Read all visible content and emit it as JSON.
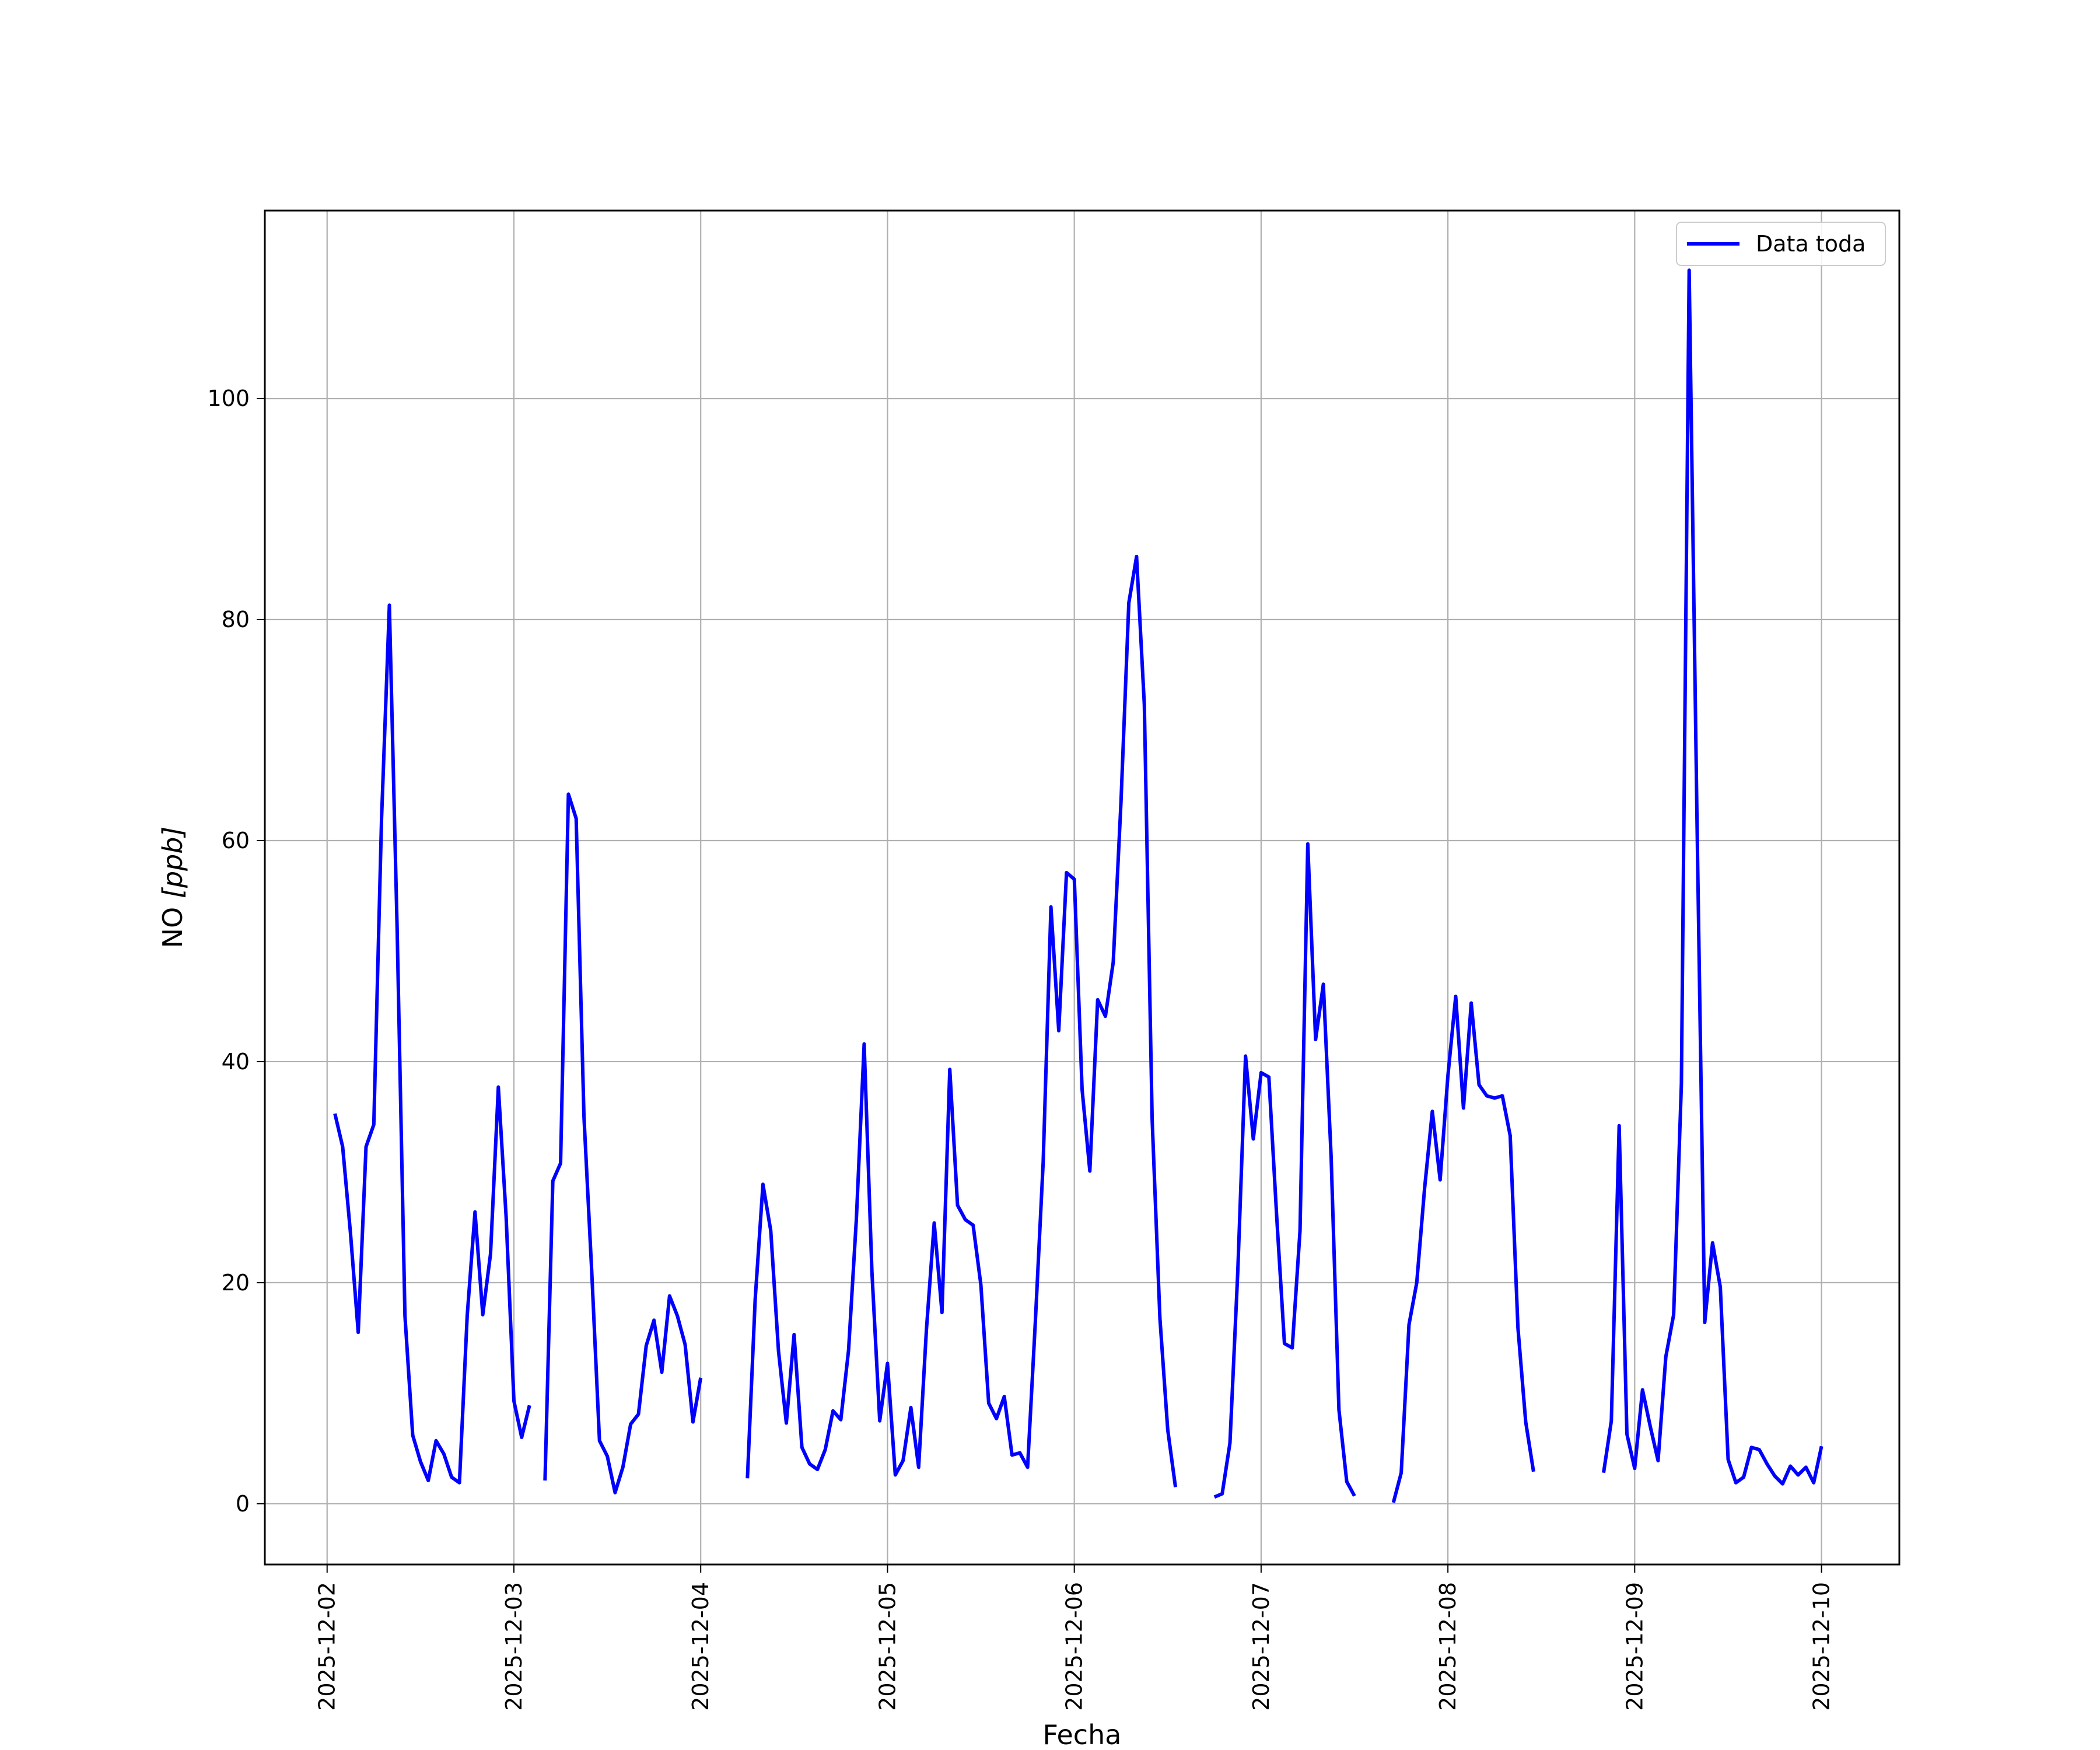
{
  "chart_data": {
    "type": "line",
    "xlabel": "Fecha",
    "ylabel_main": "NO ",
    "ylabel_unit": "[ppb]",
    "xlim": [
      "2025-12-01T16:00",
      "2025-12-10T10:00"
    ],
    "ylim": [
      -5.5,
      117
    ],
    "x_ticks": [
      "2025-12-02",
      "2025-12-03",
      "2025-12-04",
      "2025-12-05",
      "2025-12-06",
      "2025-12-07",
      "2025-12-08",
      "2025-12-09",
      "2025-12-10"
    ],
    "y_ticks": [
      0,
      20,
      40,
      60,
      80,
      100
    ],
    "grid": true,
    "legend_position": "upper-right",
    "series": [
      {
        "name": "Data toda",
        "color": "#0000ff",
        "segments": [
          [
            [
              "2025-12-02T01:00",
              35.3
            ],
            [
              "2025-12-02T02:00",
              32.3
            ],
            [
              "2025-12-02T03:00",
              24.5
            ],
            [
              "2025-12-02T04:00",
              15.5
            ],
            [
              "2025-12-02T05:00",
              32.3
            ],
            [
              "2025-12-02T06:00",
              34.3
            ],
            [
              "2025-12-02T07:00",
              62.0
            ],
            [
              "2025-12-02T08:00",
              81.3
            ],
            [
              "2025-12-02T09:00",
              52.0
            ],
            [
              "2025-12-02T10:00",
              17.0
            ],
            [
              "2025-12-02T11:00",
              6.2
            ],
            [
              "2025-12-02T12:00",
              3.8
            ],
            [
              "2025-12-02T13:00",
              2.1
            ],
            [
              "2025-12-02T14:00",
              5.7
            ],
            [
              "2025-12-02T15:00",
              4.5
            ],
            [
              "2025-12-02T16:00",
              2.4
            ],
            [
              "2025-12-02T17:00",
              1.9
            ],
            [
              "2025-12-02T18:00",
              17.0
            ],
            [
              "2025-12-02T19:00",
              26.4
            ],
            [
              "2025-12-02T20:00",
              17.1
            ],
            [
              "2025-12-02T21:00",
              22.6
            ],
            [
              "2025-12-02T22:00",
              37.7
            ],
            [
              "2025-12-02T23:00",
              26.0
            ],
            [
              "2025-12-03T00:00",
              9.3
            ],
            [
              "2025-12-03T01:00",
              6.0
            ],
            [
              "2025-12-03T02:00",
              8.9
            ]
          ],
          [
            [
              "2025-12-03T04:00",
              2.1
            ],
            [
              "2025-12-03T05:00",
              29.2
            ],
            [
              "2025-12-03T06:00",
              30.8
            ],
            [
              "2025-12-03T07:00",
              64.2
            ],
            [
              "2025-12-03T08:00",
              62.0
            ],
            [
              "2025-12-03T09:00",
              35.0
            ],
            [
              "2025-12-03T10:00",
              21.0
            ],
            [
              "2025-12-03T11:00",
              5.7
            ],
            [
              "2025-12-03T12:00",
              4.3
            ],
            [
              "2025-12-03T13:00",
              1.0
            ],
            [
              "2025-12-03T14:00",
              3.3
            ],
            [
              "2025-12-03T15:00",
              7.2
            ],
            [
              "2025-12-03T16:00",
              8.1
            ],
            [
              "2025-12-03T17:00",
              14.3
            ],
            [
              "2025-12-03T18:00",
              16.6
            ],
            [
              "2025-12-03T19:00",
              11.9
            ],
            [
              "2025-12-03T20:00",
              18.8
            ],
            [
              "2025-12-03T21:00",
              17.0
            ],
            [
              "2025-12-03T22:00",
              14.4
            ],
            [
              "2025-12-03T23:00",
              7.4
            ],
            [
              "2025-12-04T00:00",
              11.4
            ]
          ],
          [
            [
              "2025-12-04T06:00",
              2.3
            ],
            [
              "2025-12-04T07:00",
              18.5
            ],
            [
              "2025-12-04T08:00",
              28.9
            ],
            [
              "2025-12-04T09:00",
              24.7
            ],
            [
              "2025-12-04T10:00",
              13.8
            ],
            [
              "2025-12-04T11:00",
              7.3
            ],
            [
              "2025-12-04T12:00",
              15.3
            ],
            [
              "2025-12-04T13:00",
              5.1
            ],
            [
              "2025-12-04T14:00",
              3.6
            ],
            [
              "2025-12-04T15:00",
              3.1
            ],
            [
              "2025-12-04T16:00",
              4.9
            ],
            [
              "2025-12-04T17:00",
              8.4
            ],
            [
              "2025-12-04T18:00",
              7.6
            ],
            [
              "2025-12-04T19:00",
              13.9
            ],
            [
              "2025-12-04T20:00",
              25.8
            ],
            [
              "2025-12-04T21:00",
              41.6
            ],
            [
              "2025-12-04T22:00",
              21.0
            ],
            [
              "2025-12-04T23:00",
              7.5
            ],
            [
              "2025-12-05T00:00",
              12.7
            ],
            [
              "2025-12-05T01:00",
              2.6
            ],
            [
              "2025-12-05T02:00",
              3.9
            ],
            [
              "2025-12-05T03:00",
              8.7
            ],
            [
              "2025-12-05T04:00",
              3.3
            ],
            [
              "2025-12-05T05:00",
              15.7
            ],
            [
              "2025-12-05T06:00",
              25.4
            ],
            [
              "2025-12-05T07:00",
              17.3
            ],
            [
              "2025-12-05T08:00",
              39.3
            ],
            [
              "2025-12-05T09:00",
              27.0
            ],
            [
              "2025-12-05T10:00",
              25.7
            ],
            [
              "2025-12-05T11:00",
              25.2
            ],
            [
              "2025-12-05T12:00",
              19.8
            ],
            [
              "2025-12-05T13:00",
              9.1
            ],
            [
              "2025-12-05T14:00",
              7.7
            ],
            [
              "2025-12-05T15:00",
              9.7
            ],
            [
              "2025-12-05T16:00",
              4.4
            ],
            [
              "2025-12-05T17:00",
              4.6
            ],
            [
              "2025-12-05T18:00",
              3.3
            ],
            [
              "2025-12-05T19:00",
              16.5
            ],
            [
              "2025-12-05T20:00",
              30.9
            ],
            [
              "2025-12-05T21:00",
              54.0
            ],
            [
              "2025-12-05T22:00",
              42.8
            ],
            [
              "2025-12-05T23:00",
              57.1
            ],
            [
              "2025-12-06T00:00",
              56.5
            ],
            [
              "2025-12-06T01:00",
              37.5
            ],
            [
              "2025-12-06T02:00",
              30.1
            ],
            [
              "2025-12-06T03:00",
              45.6
            ],
            [
              "2025-12-06T04:00",
              44.1
            ],
            [
              "2025-12-06T05:00",
              49.0
            ],
            [
              "2025-12-06T06:00",
              63.5
            ],
            [
              "2025-12-06T07:00",
              81.5
            ],
            [
              "2025-12-06T08:00",
              85.7
            ],
            [
              "2025-12-06T09:00",
              72.3
            ],
            [
              "2025-12-06T10:00",
              34.8
            ],
            [
              "2025-12-06T11:00",
              16.8
            ],
            [
              "2025-12-06T12:00",
              6.7
            ],
            [
              "2025-12-06T13:00",
              1.5
            ]
          ],
          [
            [
              "2025-12-06T18:00",
              0.6
            ],
            [
              "2025-12-06T19:00",
              0.9
            ],
            [
              "2025-12-06T20:00",
              5.5
            ],
            [
              "2025-12-06T21:00",
              21.0
            ],
            [
              "2025-12-06T22:00",
              40.5
            ],
            [
              "2025-12-06T23:00",
              33.0
            ],
            [
              "2025-12-07T00:00",
              39.0
            ],
            [
              "2025-12-07T01:00",
              38.6
            ],
            [
              "2025-12-07T02:00",
              26.0
            ],
            [
              "2025-12-07T03:00",
              14.5
            ],
            [
              "2025-12-07T04:00",
              14.1
            ],
            [
              "2025-12-07T05:00",
              24.7
            ],
            [
              "2025-12-07T06:00",
              59.7
            ],
            [
              "2025-12-07T07:00",
              42.0
            ],
            [
              "2025-12-07T08:00",
              47.0
            ],
            [
              "2025-12-07T09:00",
              31.3
            ],
            [
              "2025-12-07T10:00",
              8.5
            ],
            [
              "2025-12-07T11:00",
              2.0
            ],
            [
              "2025-12-07T12:00",
              0.7
            ]
          ],
          [
            [
              "2025-12-07T17:00",
              0.1
            ],
            [
              "2025-12-07T18:00",
              2.8
            ],
            [
              "2025-12-07T19:00",
              16.2
            ],
            [
              "2025-12-07T20:00",
              20.0
            ],
            [
              "2025-12-07T21:00",
              28.5
            ],
            [
              "2025-12-07T22:00",
              35.5
            ],
            [
              "2025-12-07T23:00",
              29.3
            ],
            [
              "2025-12-08T00:00",
              38.7
            ],
            [
              "2025-12-08T01:00",
              45.9
            ],
            [
              "2025-12-08T02:00",
              35.8
            ],
            [
              "2025-12-08T03:00",
              45.3
            ],
            [
              "2025-12-08T04:00",
              37.9
            ],
            [
              "2025-12-08T05:00",
              36.9
            ],
            [
              "2025-12-08T06:00",
              36.7
            ],
            [
              "2025-12-08T07:00",
              36.9
            ],
            [
              "2025-12-08T08:00",
              33.3
            ],
            [
              "2025-12-08T09:00",
              15.9
            ],
            [
              "2025-12-08T10:00",
              7.4
            ],
            [
              "2025-12-08T11:00",
              2.9
            ]
          ],
          [
            [
              "2025-12-08T20:00",
              2.8
            ],
            [
              "2025-12-08T21:00",
              7.5
            ],
            [
              "2025-12-08T22:00",
              34.2
            ],
            [
              "2025-12-08T23:00",
              6.3
            ],
            [
              "2025-12-09T00:00",
              3.2
            ],
            [
              "2025-12-09T01:00",
              10.3
            ],
            [
              "2025-12-09T02:00",
              7.0
            ],
            [
              "2025-12-09T03:00",
              3.9
            ],
            [
              "2025-12-09T04:00",
              13.3
            ],
            [
              "2025-12-09T05:00",
              17.1
            ],
            [
              "2025-12-09T06:00",
              38.0
            ],
            [
              "2025-12-09T07:00",
              111.6
            ],
            [
              "2025-12-09T08:00",
              62.0
            ],
            [
              "2025-12-09T09:00",
              16.4
            ],
            [
              "2025-12-09T10:00",
              23.6
            ],
            [
              "2025-12-09T11:00",
              19.6
            ],
            [
              "2025-12-09T12:00",
              4.0
            ],
            [
              "2025-12-09T13:00",
              1.9
            ],
            [
              "2025-12-09T14:00",
              2.4
            ],
            [
              "2025-12-09T15:00",
              5.1
            ],
            [
              "2025-12-09T16:00",
              4.9
            ],
            [
              "2025-12-09T17:00",
              3.6
            ],
            [
              "2025-12-09T18:00",
              2.5
            ],
            [
              "2025-12-09T19:00",
              1.8
            ],
            [
              "2025-12-09T20:00",
              3.4
            ],
            [
              "2025-12-09T21:00",
              2.6
            ],
            [
              "2025-12-09T22:00",
              3.3
            ],
            [
              "2025-12-09T23:00",
              1.9
            ],
            [
              "2025-12-10T00:00",
              5.2
            ]
          ]
        ]
      }
    ]
  }
}
